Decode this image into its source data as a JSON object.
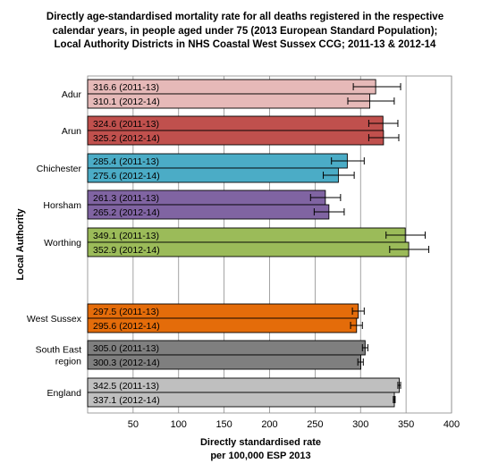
{
  "chart_data": {
    "type": "bar",
    "orientation": "horizontal",
    "title_lines": [
      "Directly age-standardised mortality rate for all deaths registered in the respective",
      "calendar years, in people aged under 75 (2013 European Standard Population);",
      "Local Authority Districts in NHS Coastal West Sussex CCG; 2011-13 & 2012-14"
    ],
    "xlabel_lines": [
      "Directly standardised rate",
      "per 100,000 ESP 2013"
    ],
    "ylabel": "Local Authority",
    "xlim": [
      0,
      400
    ],
    "xticks": [
      50,
      100,
      150,
      200,
      250,
      300,
      350,
      400
    ],
    "grid": "vertical",
    "legend": "none",
    "groups": [
      {
        "name": "Adur",
        "color": "#e6b9b8",
        "bars": [
          {
            "label": "316.6 (2011-13)",
            "value": 316.6,
            "ci": [
              292,
              344
            ]
          },
          {
            "label": "310.1 (2012-14)",
            "value": 310.1,
            "ci": [
              286,
              337
            ]
          }
        ]
      },
      {
        "name": "Arun",
        "color": "#c0504d",
        "bars": [
          {
            "label": "324.6 (2011-13)",
            "value": 324.6,
            "ci": [
              309,
              341
            ]
          },
          {
            "label": "325.2 (2012-14)",
            "value": 325.2,
            "ci": [
              309,
              342
            ]
          }
        ]
      },
      {
        "name": "Chichester",
        "color": "#4bacc6",
        "bars": [
          {
            "label": "285.4 (2011-13)",
            "value": 285.4,
            "ci": [
              268,
              304
            ]
          },
          {
            "label": "275.6 (2012-14)",
            "value": 275.6,
            "ci": [
              259,
              293
            ]
          }
        ]
      },
      {
        "name": "Horsham",
        "color": "#8064a2",
        "bars": [
          {
            "label": "261.3 (2011-13)",
            "value": 261.3,
            "ci": [
              245,
              278
            ]
          },
          {
            "label": "265.2 (2012-14)",
            "value": 265.2,
            "ci": [
              249,
              282
            ]
          }
        ]
      },
      {
        "name": "Worthing",
        "color": "#9bbb59",
        "bars": [
          {
            "label": "349.1 (2011-13)",
            "value": 349.1,
            "ci": [
              328,
              371
            ]
          },
          {
            "label": "352.9 (2012-14)",
            "value": 352.9,
            "ci": [
              332,
              375
            ]
          }
        ]
      },
      {
        "name": "West Sussex",
        "color": "#e46c0a",
        "bars": [
          {
            "label": "297.5 (2011-13)",
            "value": 297.5,
            "ci": [
              291,
              304
            ]
          },
          {
            "label": "295.6 (2012-14)",
            "value": 295.6,
            "ci": [
              289,
              302
            ]
          }
        ]
      },
      {
        "name": "South East region",
        "name_lines": [
          "South East",
          "region"
        ],
        "color": "#7f7f7f",
        "bars": [
          {
            "label": "305.0 (2011-13)",
            "value": 305.0,
            "ci": [
              302,
              308
            ]
          },
          {
            "label": "300.3 (2012-14)",
            "value": 300.3,
            "ci": [
              297,
              303
            ]
          }
        ]
      },
      {
        "name": "England",
        "color": "#bfbfbf",
        "bars": [
          {
            "label": "342.5 (2011-13)",
            "value": 342.5,
            "ci": [
              341,
              344
            ]
          },
          {
            "label": "337.1 (2012-14)",
            "value": 337.1,
            "ci": [
              336,
              338
            ]
          }
        ]
      }
    ]
  }
}
